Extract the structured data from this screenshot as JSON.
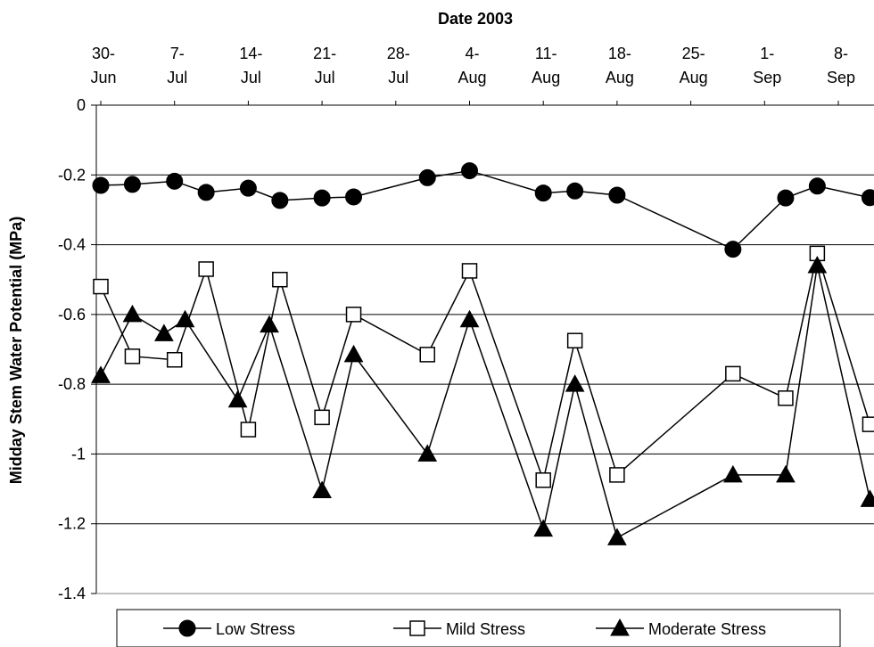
{
  "chart_data": {
    "type": "line",
    "xlabel": "Date 2003",
    "ylabel": "Midday Stem Water Potential (MPa)",
    "x_ticks": [
      {
        "date": "2003-06-30",
        "line1": "30-",
        "line2": "Jun"
      },
      {
        "date": "2003-07-07",
        "line1": "7-",
        "line2": "Jul"
      },
      {
        "date": "2003-07-14",
        "line1": "14-",
        "line2": "Jul"
      },
      {
        "date": "2003-07-21",
        "line1": "21-",
        "line2": "Jul"
      },
      {
        "date": "2003-07-28",
        "line1": "28-",
        "line2": "Jul"
      },
      {
        "date": "2003-08-04",
        "line1": "4-",
        "line2": "Aug"
      },
      {
        "date": "2003-08-11",
        "line1": "11-",
        "line2": "Aug"
      },
      {
        "date": "2003-08-18",
        "line1": "18-",
        "line2": "Aug"
      },
      {
        "date": "2003-08-25",
        "line1": "25-",
        "line2": "Aug"
      },
      {
        "date": "2003-09-01",
        "line1": "1-",
        "line2": "Sep"
      },
      {
        "date": "2003-09-08",
        "line1": "8-",
        "line2": "Sep"
      }
    ],
    "x_position": "top",
    "ylim": [
      -1.4,
      0
    ],
    "y_ticks": [
      0,
      -0.2,
      -0.4,
      -0.6,
      -0.8,
      -1,
      -1.2,
      -1.4
    ],
    "y_tick_labels": [
      "0",
      "-0.2",
      "-0.4",
      "-0.6",
      "-0.8",
      "-1",
      "-1.2",
      "-1.4"
    ],
    "grid": "horizontal",
    "legend": "bottom",
    "series": [
      {
        "name": "Low Stress",
        "marker": "filled-circle",
        "points": [
          {
            "x": "2003-06-30",
            "y": -0.23
          },
          {
            "x": "2003-07-03",
            "y": -0.227
          },
          {
            "x": "2003-07-07",
            "y": -0.218
          },
          {
            "x": "2003-07-10",
            "y": -0.25
          },
          {
            "x": "2003-07-14",
            "y": -0.238
          },
          {
            "x": "2003-07-17",
            "y": -0.273
          },
          {
            "x": "2003-07-21",
            "y": -0.266
          },
          {
            "x": "2003-07-24",
            "y": -0.263
          },
          {
            "x": "2003-07-31",
            "y": -0.208
          },
          {
            "x": "2003-08-04",
            "y": -0.188
          },
          {
            "x": "2003-08-11",
            "y": -0.252
          },
          {
            "x": "2003-08-14",
            "y": -0.246
          },
          {
            "x": "2003-08-18",
            "y": -0.258
          },
          {
            "x": "2003-08-29",
            "y": -0.413
          },
          {
            "x": "2003-09-03",
            "y": -0.266
          },
          {
            "x": "2003-09-06",
            "y": -0.232
          },
          {
            "x": "2003-09-11",
            "y": -0.265
          }
        ]
      },
      {
        "name": "Mild Stress",
        "marker": "open-square",
        "points": [
          {
            "x": "2003-06-30",
            "y": -0.52
          },
          {
            "x": "2003-07-03",
            "y": -0.72
          },
          {
            "x": "2003-07-07",
            "y": -0.73
          },
          {
            "x": "2003-07-10",
            "y": -0.47
          },
          {
            "x": "2003-07-14",
            "y": -0.93
          },
          {
            "x": "2003-07-17",
            "y": -0.5
          },
          {
            "x": "2003-07-21",
            "y": -0.895
          },
          {
            "x": "2003-07-24",
            "y": -0.6
          },
          {
            "x": "2003-07-31",
            "y": -0.715
          },
          {
            "x": "2003-08-04",
            "y": -0.475
          },
          {
            "x": "2003-08-11",
            "y": -1.075
          },
          {
            "x": "2003-08-14",
            "y": -0.675
          },
          {
            "x": "2003-08-18",
            "y": -1.06
          },
          {
            "x": "2003-08-29",
            "y": -0.77
          },
          {
            "x": "2003-09-03",
            "y": -0.84
          },
          {
            "x": "2003-09-06",
            "y": -0.425
          },
          {
            "x": "2003-09-11",
            "y": -0.915
          }
        ]
      },
      {
        "name": "Moderate Stress",
        "marker": "filled-triangle",
        "points": [
          {
            "x": "2003-06-30",
            "y": -0.775
          },
          {
            "x": "2003-07-03",
            "y": -0.6
          },
          {
            "x": "2003-07-06",
            "y": -0.655
          },
          {
            "x": "2003-07-08",
            "y": -0.615
          },
          {
            "x": "2003-07-13",
            "y": -0.845
          },
          {
            "x": "2003-07-16",
            "y": -0.63
          },
          {
            "x": "2003-07-21",
            "y": -1.105
          },
          {
            "x": "2003-07-24",
            "y": -0.715
          },
          {
            "x": "2003-07-31",
            "y": -1.0
          },
          {
            "x": "2003-08-04",
            "y": -0.615
          },
          {
            "x": "2003-08-11",
            "y": -1.215
          },
          {
            "x": "2003-08-14",
            "y": -0.8
          },
          {
            "x": "2003-08-18",
            "y": -1.24
          },
          {
            "x": "2003-08-29",
            "y": -1.06
          },
          {
            "x": "2003-09-03",
            "y": -1.06
          },
          {
            "x": "2003-09-06",
            "y": -0.46
          },
          {
            "x": "2003-09-11",
            "y": -1.13
          }
        ]
      }
    ]
  }
}
